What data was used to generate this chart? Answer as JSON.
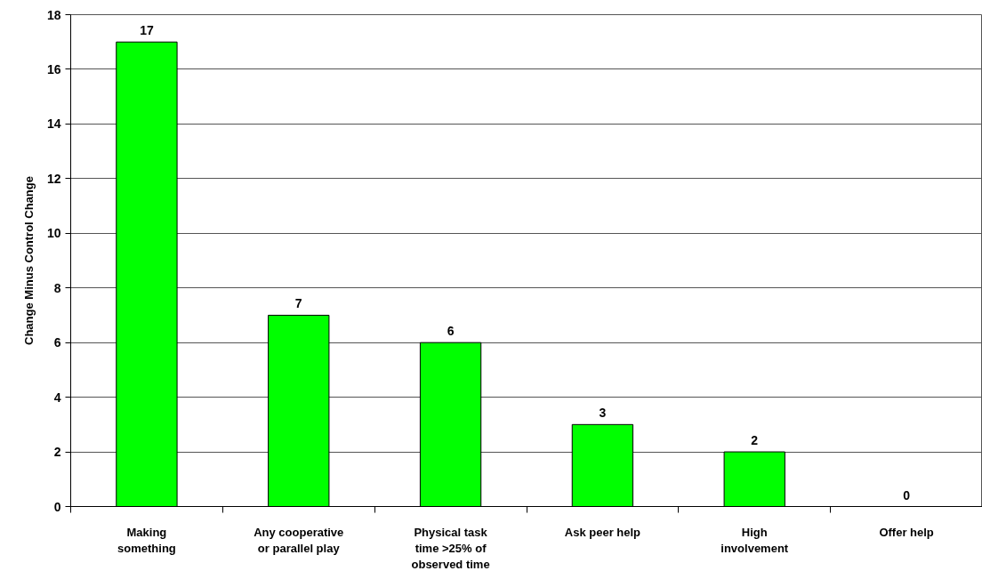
{
  "chart_data": {
    "type": "bar",
    "ylabel": "Change Minus Control Change",
    "categories": [
      "Making something",
      "Any cooperative or parallel play",
      "Physical task time >25% of observed time",
      "Ask peer help",
      "High involvement",
      "Offer help"
    ],
    "values": [
      17,
      7,
      6,
      3,
      2,
      0
    ],
    "color": "#00ff00",
    "ylim": [
      0,
      18
    ],
    "yticks": [
      0,
      2,
      4,
      6,
      8,
      10,
      12,
      14,
      16,
      18
    ],
    "grid": "y",
    "data_labels": true
  }
}
